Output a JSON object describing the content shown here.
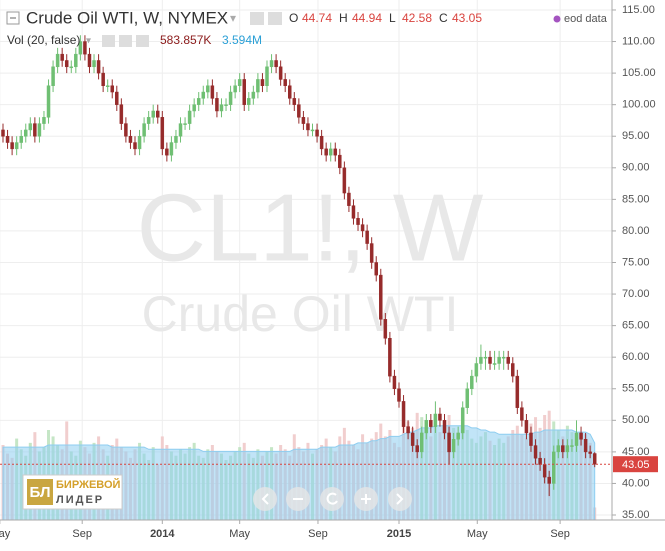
{
  "chart_data": {
    "type": "candlestick",
    "title": "Crude Oil WTI, W, NYMEX",
    "watermark": "CL1!, W",
    "watermark_subtitle": "Crude Oil WTI",
    "ohlc_letters": [
      "O",
      "H",
      "L",
      "C"
    ],
    "source": "eod data",
    "volume_title": "Vol (20, false)",
    "volume_label": "583.857K",
    "volume_ma_label": "3.594M",
    "logo_mark": "БЛ",
    "logo_lines": [
      "БИРЖЕВОЙ",
      "ЛИДЕР"
    ],
    "up_color": "#6fbf73",
    "down_color": "#962b2b",
    "volume_up_color": "#bfe3c0",
    "volume_down_color": "#efc9c9",
    "volume_ma_color": "#8ecdf0",
    "last_line_color": "#d9443f",
    "xlim": [
      -0.66,
      133.8
    ],
    "ylim": [
      34.21,
      116.58
    ],
    "vlim": [
      0,
      7
    ],
    "xticks": [
      {
        "value": -0.7,
        "label": "May"
      },
      {
        "value": 17.4,
        "label": "Sep"
      },
      {
        "value": 35,
        "label": "2014"
      },
      {
        "value": 52,
        "label": "May"
      },
      {
        "value": 69.2,
        "label": "Sep"
      },
      {
        "value": 87,
        "label": "2015"
      },
      {
        "value": 104.2,
        "label": "May"
      },
      {
        "value": 122.4,
        "label": "Sep"
      }
    ],
    "yticks": [
      {
        "value": 35,
        "label": "35.00"
      },
      {
        "value": 40,
        "label": "40.00"
      },
      {
        "value": 45,
        "label": "45.00"
      },
      {
        "value": 50,
        "label": "50.00"
      },
      {
        "value": 55,
        "label": "55.00"
      },
      {
        "value": 60,
        "label": "60.00"
      },
      {
        "value": 65,
        "label": "65.00"
      },
      {
        "value": 70,
        "label": "70.00"
      },
      {
        "value": 75,
        "label": "75.00"
      },
      {
        "value": 80,
        "label": "80.00"
      },
      {
        "value": 85,
        "label": "85.00"
      },
      {
        "value": 90,
        "label": "90.00"
      },
      {
        "value": 95,
        "label": "95.00"
      },
      {
        "value": 100,
        "label": "100.00"
      },
      {
        "value": 105,
        "label": "105.00"
      },
      {
        "value": 110,
        "label": "110.00"
      },
      {
        "value": 115,
        "label": "115.00"
      }
    ],
    "grid": true,
    "candles": [
      [
        96,
        97,
        94,
        95
      ],
      [
        95,
        96,
        93,
        94
      ],
      [
        94,
        95,
        92,
        93
      ],
      [
        93,
        95,
        92,
        94
      ],
      [
        94,
        96,
        93,
        95
      ],
      [
        95,
        97,
        94,
        96
      ],
      [
        96,
        98,
        95,
        97
      ],
      [
        97,
        98,
        94,
        95
      ],
      [
        95,
        98,
        94,
        97
      ],
      [
        97,
        99,
        96,
        98
      ],
      [
        98,
        104,
        97,
        103
      ],
      [
        103,
        107,
        102,
        106
      ],
      [
        106,
        109,
        105,
        108
      ],
      [
        108,
        109,
        106,
        107
      ],
      [
        107,
        108,
        105,
        106
      ],
      [
        106,
        107,
        105,
        106
      ],
      [
        106,
        109,
        105,
        108
      ],
      [
        108,
        111,
        107,
        110
      ],
      [
        110,
        111,
        107,
        108
      ],
      [
        108,
        109,
        105,
        106
      ],
      [
        106,
        108,
        105,
        107
      ],
      [
        107,
        108,
        104,
        105
      ],
      [
        105,
        106,
        102,
        103
      ],
      [
        103,
        104,
        102,
        103
      ],
      [
        103,
        104,
        101,
        102
      ],
      [
        102,
        103,
        99,
        100
      ],
      [
        100,
        101,
        96,
        97
      ],
      [
        97,
        98,
        94,
        95
      ],
      [
        95,
        96,
        93,
        94
      ],
      [
        94,
        95,
        92,
        93
      ],
      [
        93,
        96,
        92,
        95
      ],
      [
        95,
        98,
        94,
        97
      ],
      [
        97,
        99,
        96,
        98
      ],
      [
        98,
        100,
        97,
        99
      ],
      [
        99,
        100,
        97,
        98
      ],
      [
        98,
        99,
        92,
        93
      ],
      [
        93,
        94,
        91,
        92
      ],
      [
        92,
        95,
        91,
        94
      ],
      [
        94,
        96,
        93,
        95
      ],
      [
        95,
        98,
        94,
        97
      ],
      [
        97,
        98,
        96,
        97
      ],
      [
        97,
        100,
        96,
        99
      ],
      [
        99,
        101,
        98,
        100
      ],
      [
        100,
        102,
        99,
        101
      ],
      [
        101,
        103,
        100,
        102
      ],
      [
        102,
        104,
        101,
        103
      ],
      [
        103,
        104,
        100,
        101
      ],
      [
        101,
        102,
        98,
        99
      ],
      [
        99,
        101,
        98,
        100
      ],
      [
        100,
        101,
        99,
        100
      ],
      [
        100,
        103,
        99,
        102
      ],
      [
        102,
        104,
        101,
        103
      ],
      [
        103,
        105,
        102,
        104
      ],
      [
        104,
        105,
        99,
        100
      ],
      [
        100,
        102,
        99,
        101
      ],
      [
        101,
        103,
        100,
        102
      ],
      [
        102,
        105,
        101,
        104
      ],
      [
        104,
        105,
        102,
        103
      ],
      [
        103,
        107,
        102,
        106
      ],
      [
        106,
        108,
        105,
        107
      ],
      [
        107,
        108,
        105,
        106
      ],
      [
        106,
        107,
        103,
        104
      ],
      [
        104,
        105,
        102,
        103
      ],
      [
        103,
        104,
        100,
        101
      ],
      [
        101,
        102,
        99,
        100
      ],
      [
        100,
        101,
        97,
        98
      ],
      [
        98,
        99,
        96,
        97
      ],
      [
        97,
        98,
        95,
        96
      ],
      [
        96,
        97,
        95,
        96
      ],
      [
        96,
        97,
        94,
        95
      ],
      [
        95,
        96,
        92,
        93
      ],
      [
        93,
        94,
        91,
        92
      ],
      [
        92,
        94,
        91,
        93
      ],
      [
        93,
        94,
        91,
        92
      ],
      [
        92,
        93,
        89,
        90
      ],
      [
        90,
        91,
        85,
        86
      ],
      [
        86,
        87,
        83,
        84
      ],
      [
        84,
        85,
        81,
        82
      ],
      [
        82,
        83,
        80,
        81
      ],
      [
        81,
        82,
        79,
        80
      ],
      [
        80,
        81,
        77,
        78
      ],
      [
        78,
        79,
        74,
        75
      ],
      [
        75,
        76,
        72,
        73
      ],
      [
        73,
        74,
        65,
        66
      ],
      [
        66,
        67,
        62,
        63
      ],
      [
        63,
        64,
        56,
        57
      ],
      [
        57,
        58,
        54,
        55
      ],
      [
        55,
        56,
        52,
        53
      ],
      [
        53,
        54,
        48,
        49
      ],
      [
        49,
        50,
        47,
        48
      ],
      [
        48,
        49,
        45,
        46
      ],
      [
        46,
        47,
        44,
        45
      ],
      [
        45,
        49,
        44,
        48
      ],
      [
        48,
        51,
        47,
        50
      ],
      [
        50,
        51,
        48,
        49
      ],
      [
        49,
        53,
        48,
        51
      ],
      [
        51,
        52,
        49,
        50
      ],
      [
        50,
        51,
        47,
        48
      ],
      [
        48,
        49,
        43,
        45
      ],
      [
        45,
        48,
        44,
        47
      ],
      [
        47,
        49,
        46,
        48
      ],
      [
        48,
        53,
        47,
        52
      ],
      [
        52,
        56,
        51,
        55
      ],
      [
        55,
        58,
        54,
        57
      ],
      [
        57,
        60,
        56,
        59
      ],
      [
        59,
        62,
        58,
        60
      ],
      [
        60,
        61,
        58,
        60
      ],
      [
        60,
        61,
        58,
        59
      ],
      [
        59,
        61,
        58,
        59
      ],
      [
        59,
        61,
        58,
        60
      ],
      [
        60,
        61,
        58,
        60
      ],
      [
        60,
        61,
        58,
        59
      ],
      [
        59,
        60,
        56,
        57
      ],
      [
        57,
        58,
        51,
        52
      ],
      [
        52,
        53,
        49,
        50
      ],
      [
        50,
        51,
        47,
        48
      ],
      [
        48,
        49,
        45,
        46
      ],
      [
        46,
        47,
        43,
        44
      ],
      [
        44,
        45,
        42,
        43
      ],
      [
        43,
        44,
        40,
        41
      ],
      [
        41,
        42,
        38,
        40
      ],
      [
        40,
        46,
        39,
        45
      ],
      [
        45,
        47,
        44,
        46
      ],
      [
        46,
        47,
        44,
        45
      ],
      [
        45,
        47,
        44,
        46
      ],
      [
        46,
        47,
        45,
        46
      ],
      [
        46,
        50,
        45,
        48
      ],
      [
        48,
        49,
        46,
        47
      ],
      [
        47,
        48,
        44,
        45
      ],
      [
        45,
        46,
        44,
        44.74
      ],
      [
        44.74,
        44.94,
        42.58,
        43.05
      ]
    ],
    "volume": [
      3.5,
      3.1,
      2.9,
      3.8,
      3.3,
      3.0,
      3.6,
      4.1,
      3.2,
      3.4,
      4.2,
      3.9,
      3.5,
      3.3,
      4.6,
      3.2,
      3.0,
      3.7,
      3.4,
      3.1,
      3.6,
      3.9,
      3.3,
      3.0,
      3.5,
      3.8,
      3.4,
      3.2,
      2.9,
      3.3,
      3.6,
      3.1,
      2.8,
      3.4,
      2.6,
      3.9,
      3.5,
      3.2,
      3.0,
      3.3,
      3.1,
      3.4,
      3.6,
      3.0,
      2.9,
      3.3,
      3.5,
      3.2,
      3.1,
      2.8,
      3.0,
      3.2,
      3.4,
      3.6,
      3.1,
      2.9,
      3.3,
      3.0,
      3.2,
      3.4,
      3.1,
      3.5,
      3.3,
      3.0,
      4.0,
      3.4,
      3.2,
      3.6,
      3.1,
      3.3,
      3.5,
      3.8,
      3.4,
      3.2,
      3.9,
      4.3,
      3.7,
      3.5,
      3.3,
      4.0,
      3.6,
      3.8,
      4.1,
      4.5,
      3.9,
      4.2,
      3.6,
      3.4,
      4.4,
      4.6,
      4.3,
      5.0,
      4.8,
      4.2,
      3.9,
      4.5,
      4.1,
      4.4,
      4.9,
      4.3,
      4.0,
      4.6,
      4.2,
      3.8,
      3.6,
      3.9,
      4.1,
      3.7,
      3.5,
      3.8,
      3.6,
      3.9,
      4.2,
      4.4,
      4.0,
      3.8,
      4.5,
      4.8,
      4.3,
      4.9,
      5.1,
      4.6,
      4.2,
      3.9,
      4.4,
      4.1,
      3.7,
      3.8,
      4.0,
      3.6,
      0.583857
    ],
    "volume_ma": [
      3.4,
      3.4,
      3.4,
      3.4,
      3.4,
      3.4,
      3.4,
      3.4,
      3.4,
      3.4,
      3.5,
      3.5,
      3.5,
      3.5,
      3.5,
      3.5,
      3.5,
      3.5,
      3.5,
      3.5,
      3.5,
      3.5,
      3.5,
      3.5,
      3.4,
      3.4,
      3.4,
      3.4,
      3.4,
      3.4,
      3.4,
      3.4,
      3.3,
      3.3,
      3.3,
      3.3,
      3.3,
      3.3,
      3.3,
      3.3,
      3.3,
      3.3,
      3.3,
      3.3,
      3.2,
      3.2,
      3.2,
      3.2,
      3.2,
      3.2,
      3.2,
      3.2,
      3.2,
      3.2,
      3.2,
      3.2,
      3.2,
      3.2,
      3.2,
      3.2,
      3.2,
      3.2,
      3.2,
      3.2,
      3.3,
      3.3,
      3.3,
      3.3,
      3.3,
      3.3,
      3.4,
      3.4,
      3.4,
      3.4,
      3.5,
      3.5,
      3.5,
      3.5,
      3.6,
      3.6,
      3.6,
      3.7,
      3.7,
      3.8,
      3.8,
      3.9,
      3.9,
      3.9,
      4.0,
      4.1,
      4.1,
      4.2,
      4.3,
      4.3,
      4.3,
      4.4,
      4.4,
      4.4,
      4.4,
      4.4,
      4.4,
      4.4,
      4.4,
      4.3,
      4.3,
      4.2,
      4.2,
      4.1,
      4.1,
      4.0,
      4.0,
      4.0,
      4.0,
      4.0,
      4.0,
      4.0,
      4.0,
      4.1,
      4.1,
      4.2,
      4.2,
      4.2,
      4.2,
      4.2,
      4.2,
      4.2,
      4.1,
      4.1,
      4.1,
      4.0,
      3.594
    ]
  }
}
